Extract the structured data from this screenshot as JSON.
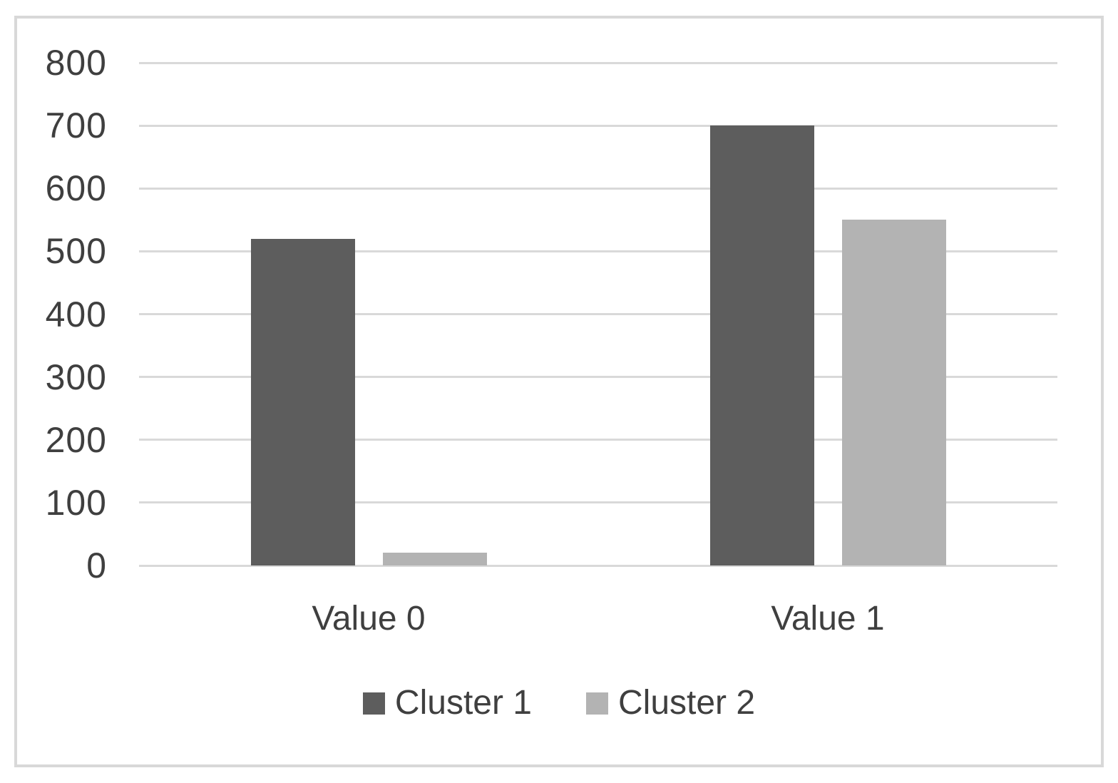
{
  "chart_data": {
    "type": "bar",
    "title": "",
    "xlabel": "",
    "ylabel": "",
    "categories": [
      "Value 0",
      "Value 1"
    ],
    "series": [
      {
        "name": "Cluster 1",
        "values": [
          520,
          700
        ],
        "color": "#5d5d5d"
      },
      {
        "name": "Cluster 2",
        "values": [
          20,
          550
        ],
        "color": "#b3b3b3"
      }
    ],
    "ylim": [
      0,
      800
    ],
    "ytick_step": 100,
    "ytick_labels": [
      "0",
      "100",
      "200",
      "300",
      "400",
      "500",
      "600",
      "700",
      "800"
    ],
    "grid": true,
    "gridline_color": "#d9d9d9",
    "frame_border_color": "#d8d8d8",
    "axis_text_color": "#3f3f3f",
    "background_color": "#ffffff",
    "legend_position": "bottom-center"
  }
}
